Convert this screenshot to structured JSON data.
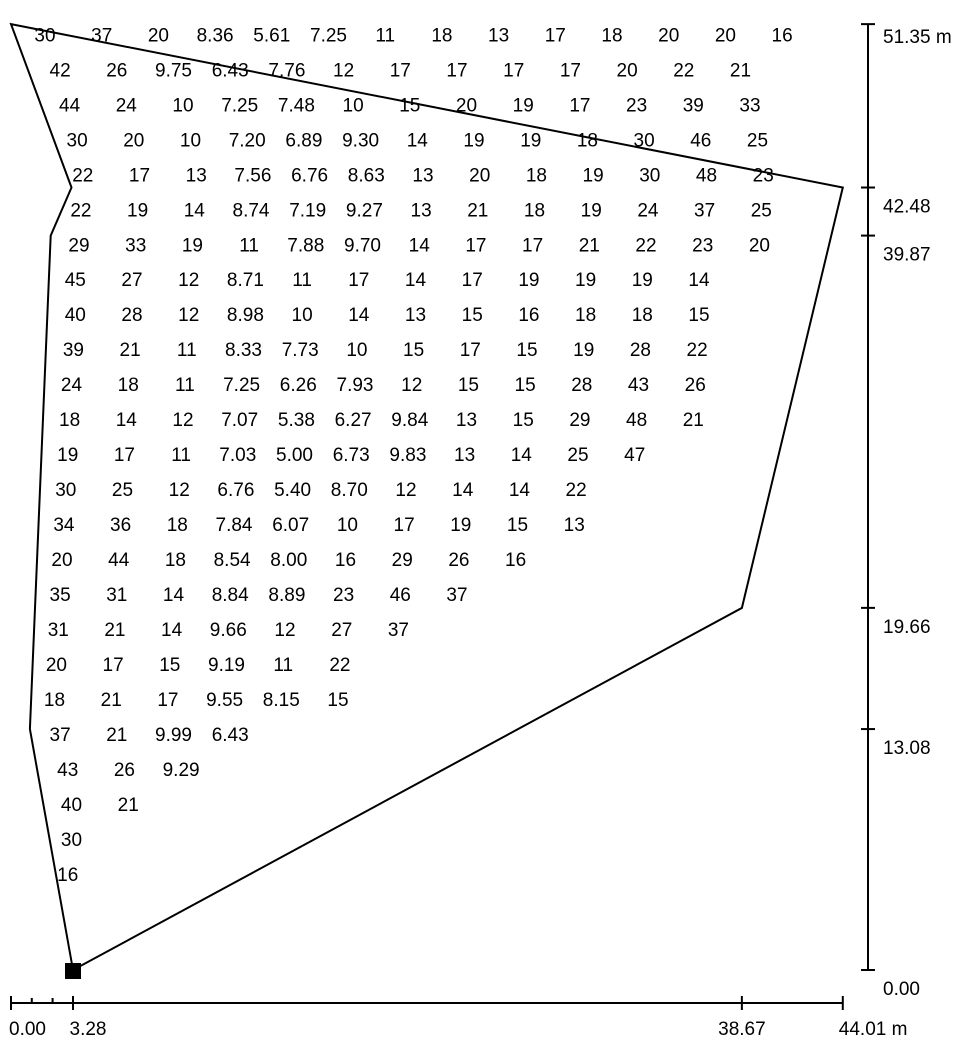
{
  "boundary": [
    [
      0.0,
      51.35
    ],
    [
      44.01,
      42.48
    ],
    [
      38.67,
      19.66
    ],
    [
      3.28,
      0.0
    ],
    [
      1.0,
      13.08
    ],
    [
      2.1,
      39.87
    ],
    [
      3.2,
      42.48
    ]
  ],
  "x_axis": {
    "ticks": [
      "0.00",
      "3.28",
      "38.67",
      "44.01 m"
    ],
    "tick_values": [
      0.0,
      3.28,
      38.67,
      44.01
    ],
    "minor_ticks": [
      1.1,
      2.2
    ]
  },
  "y_axis": {
    "ticks": [
      "0.00",
      "13.08",
      "19.66",
      "39.87",
      "42.48",
      "51.35 m"
    ],
    "tick_values": [
      0.0,
      13.08,
      19.66,
      39.87,
      42.48,
      51.35
    ]
  },
  "marker": {
    "x": 3.28,
    "y": 0.0
  },
  "rows": [
    {
      "y": 50.8,
      "x0": 1.8,
      "dx": 3.0,
      "values": [
        "30",
        "37",
        "20",
        "8.36",
        "5.61",
        "7.25",
        "11",
        "18",
        "13",
        "17",
        "18",
        "20",
        "20",
        "16"
      ]
    },
    {
      "y": 48.9,
      "x0": 2.6,
      "dx": 3.0,
      "values": [
        "42",
        "26",
        "9.75",
        "6.43",
        "7.76",
        "12",
        "17",
        "17",
        "17",
        "17",
        "20",
        "22",
        "21"
      ]
    },
    {
      "y": 47.0,
      "x0": 3.1,
      "dx": 3.0,
      "values": [
        "44",
        "24",
        "10",
        "7.25",
        "7.48",
        "10",
        "15",
        "20",
        "19",
        "17",
        "23",
        "39",
        "33"
      ]
    },
    {
      "y": 45.1,
      "x0": 3.5,
      "dx": 3.0,
      "values": [
        "30",
        "20",
        "10",
        "7.20",
        "6.89",
        "9.30",
        "14",
        "19",
        "19",
        "18",
        "30",
        "46",
        "25"
      ]
    },
    {
      "y": 43.2,
      "x0": 3.8,
      "dx": 3.0,
      "values": [
        "22",
        "17",
        "13",
        "7.56",
        "6.76",
        "8.63",
        "13",
        "20",
        "18",
        "19",
        "30",
        "48",
        "23"
      ]
    },
    {
      "y": 41.3,
      "x0": 3.7,
      "dx": 3.0,
      "values": [
        "22",
        "19",
        "14",
        "8.74",
        "7.19",
        "9.27",
        "13",
        "21",
        "18",
        "19",
        "24",
        "37",
        "25"
      ]
    },
    {
      "y": 39.4,
      "x0": 3.6,
      "dx": 3.0,
      "values": [
        "29",
        "33",
        "19",
        "11",
        "7.88",
        "9.70",
        "14",
        "17",
        "17",
        "21",
        "22",
        "23",
        "20"
      ]
    },
    {
      "y": 37.5,
      "x0": 3.4,
      "dx": 3.0,
      "values": [
        "45",
        "27",
        "12",
        "8.71",
        "11",
        "17",
        "14",
        "17",
        "19",
        "19",
        "19",
        "14"
      ]
    },
    {
      "y": 35.6,
      "x0": 3.4,
      "dx": 3.0,
      "values": [
        "40",
        "28",
        "12",
        "8.98",
        "10",
        "14",
        "13",
        "15",
        "16",
        "18",
        "18",
        "15"
      ]
    },
    {
      "y": 33.7,
      "x0": 3.3,
      "dx": 3.0,
      "values": [
        "39",
        "21",
        "11",
        "8.33",
        "7.73",
        "10",
        "15",
        "17",
        "15",
        "19",
        "28",
        "22"
      ]
    },
    {
      "y": 31.8,
      "x0": 3.2,
      "dx": 3.0,
      "values": [
        "24",
        "18",
        "11",
        "7.25",
        "6.26",
        "7.93",
        "12",
        "15",
        "15",
        "28",
        "43",
        "26"
      ]
    },
    {
      "y": 29.9,
      "x0": 3.1,
      "dx": 3.0,
      "values": [
        "18",
        "14",
        "12",
        "7.07",
        "5.38",
        "6.27",
        "9.84",
        "13",
        "15",
        "29",
        "48",
        "21"
      ]
    },
    {
      "y": 28.0,
      "x0": 3.0,
      "dx": 3.0,
      "values": [
        "19",
        "17",
        "11",
        "7.03",
        "5.00",
        "6.73",
        "9.83",
        "13",
        "14",
        "25",
        "47"
      ]
    },
    {
      "y": 26.1,
      "x0": 2.9,
      "dx": 3.0,
      "values": [
        "30",
        "25",
        "12",
        "6.76",
        "5.40",
        "8.70",
        "12",
        "14",
        "14",
        "22"
      ]
    },
    {
      "y": 24.2,
      "x0": 2.8,
      "dx": 3.0,
      "values": [
        "34",
        "36",
        "18",
        "7.84",
        "6.07",
        "10",
        "17",
        "19",
        "15",
        "13"
      ]
    },
    {
      "y": 22.3,
      "x0": 2.7,
      "dx": 3.0,
      "values": [
        "20",
        "44",
        "18",
        "8.54",
        "8.00",
        "16",
        "29",
        "26",
        "16"
      ]
    },
    {
      "y": 20.4,
      "x0": 2.6,
      "dx": 3.0,
      "values": [
        "35",
        "31",
        "14",
        "8.84",
        "8.89",
        "23",
        "46",
        "37"
      ]
    },
    {
      "y": 18.5,
      "x0": 2.5,
      "dx": 3.0,
      "values": [
        "31",
        "21",
        "14",
        "9.66",
        "12",
        "27",
        "37"
      ]
    },
    {
      "y": 16.6,
      "x0": 2.4,
      "dx": 3.0,
      "values": [
        "20",
        "17",
        "15",
        "9.19",
        "11",
        "22"
      ]
    },
    {
      "y": 14.7,
      "x0": 2.3,
      "dx": 3.0,
      "values": [
        "18",
        "21",
        "17",
        "9.55",
        "8.15",
        "15"
      ]
    },
    {
      "y": 12.8,
      "x0": 2.6,
      "dx": 3.0,
      "values": [
        "37",
        "21",
        "9.99",
        "6.43"
      ]
    },
    {
      "y": 10.9,
      "x0": 3.0,
      "dx": 3.0,
      "values": [
        "43",
        "26",
        "9.29"
      ]
    },
    {
      "y": 9.0,
      "x0": 3.2,
      "dx": 3.0,
      "values": [
        "40",
        "21"
      ]
    },
    {
      "y": 7.1,
      "x0": 3.2,
      "dx": 3.0,
      "values": [
        "30"
      ]
    },
    {
      "y": 5.2,
      "x0": 3.0,
      "dx": 3.0,
      "values": [
        "16"
      ]
    }
  ]
}
